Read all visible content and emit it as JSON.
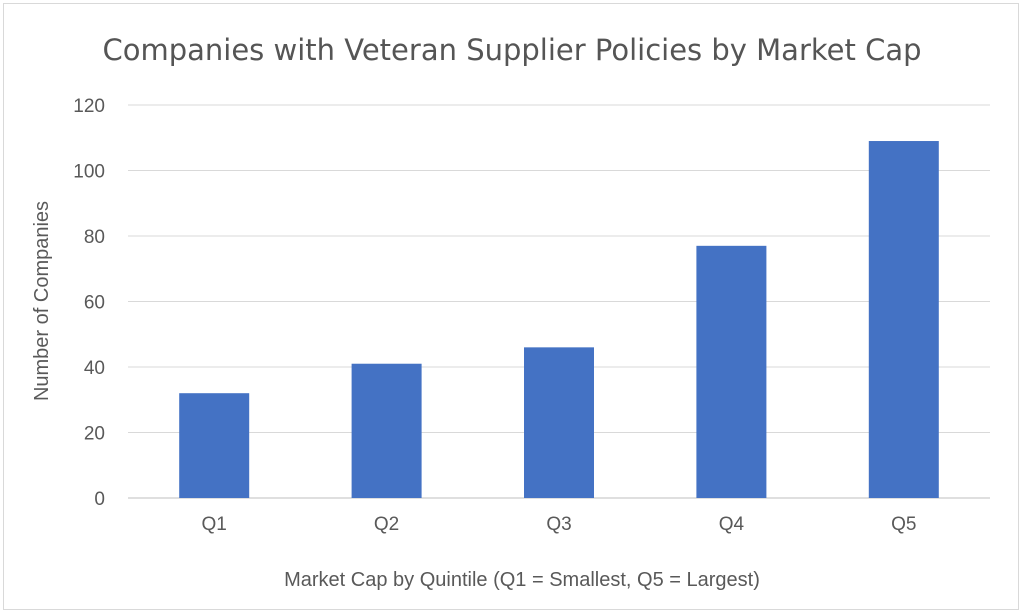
{
  "chart_data": {
    "type": "bar",
    "title": "Companies with Veteran Supplier Policies by Market Cap",
    "xlabel": "Market Cap by Quintile (Q1 = Smallest, Q5 = Largest)",
    "ylabel": "Number of Companies",
    "categories": [
      "Q1",
      "Q2",
      "Q3",
      "Q4",
      "Q5"
    ],
    "values": [
      32,
      41,
      46,
      77,
      109
    ],
    "ylim": [
      0,
      120
    ],
    "yticks": [
      0,
      20,
      40,
      60,
      80,
      100,
      120
    ],
    "grid": true,
    "legend": "none",
    "bar_color": "#4472C4"
  }
}
